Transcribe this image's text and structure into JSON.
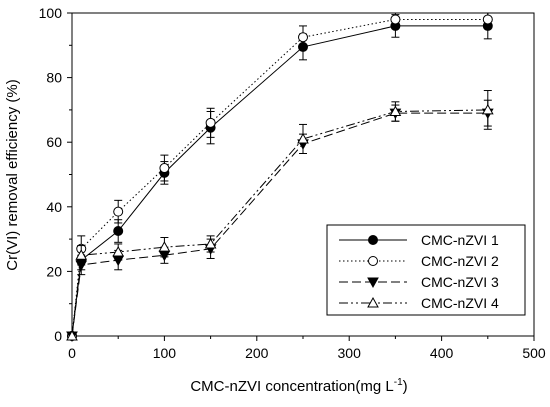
{
  "chart_data": {
    "type": "line",
    "title": "",
    "xlabel": "CMC-nZVI concentration",
    "xlabel_unit_main": "(mg L",
    "xlabel_unit_sup": "-1",
    "xlabel_unit_end": ")",
    "ylabel": "Cr(VI) removal efficiency (%)",
    "xlim": [
      0,
      500
    ],
    "ylim": [
      0,
      100
    ],
    "xticks": [
      0,
      100,
      200,
      300,
      400,
      500
    ],
    "yticks": [
      0,
      20,
      40,
      60,
      80,
      100
    ],
    "grid": false,
    "legend_position": "bottom-right",
    "x": [
      0,
      10,
      50,
      100,
      150,
      250,
      350,
      450
    ],
    "series": [
      {
        "name": "CMC-nZVI 1",
        "marker": "filled-circle",
        "line": "solid",
        "values": [
          0,
          23.5,
          32.5,
          50.5,
          64.5,
          89.5,
          96,
          96
        ],
        "errors": [
          0,
          3,
          3.5,
          3.5,
          5,
          4,
          3.5,
          4
        ]
      },
      {
        "name": "CMC-nZVI 2",
        "marker": "open-circle",
        "line": "dotted",
        "values": [
          0,
          27,
          38.5,
          52,
          66,
          92.5,
          98,
          98
        ],
        "errors": [
          0,
          4,
          3.5,
          4,
          4.5,
          3.5,
          2,
          2
        ]
      },
      {
        "name": "CMC-nZVI 3",
        "marker": "filled-triangle-down",
        "line": "dashed",
        "values": [
          0,
          22,
          23.5,
          25,
          27,
          59.5,
          69,
          69
        ],
        "errors": [
          0,
          3,
          3,
          2.5,
          3,
          3,
          2.5,
          4
        ]
      },
      {
        "name": "CMC-nZVI 4",
        "marker": "open-triangle-up",
        "line": "dash-dot",
        "values": [
          0,
          25,
          26,
          27.5,
          28.5,
          61,
          69.5,
          70
        ],
        "errors": [
          0,
          3,
          2.5,
          3,
          2.5,
          4.5,
          3,
          6
        ]
      }
    ]
  }
}
